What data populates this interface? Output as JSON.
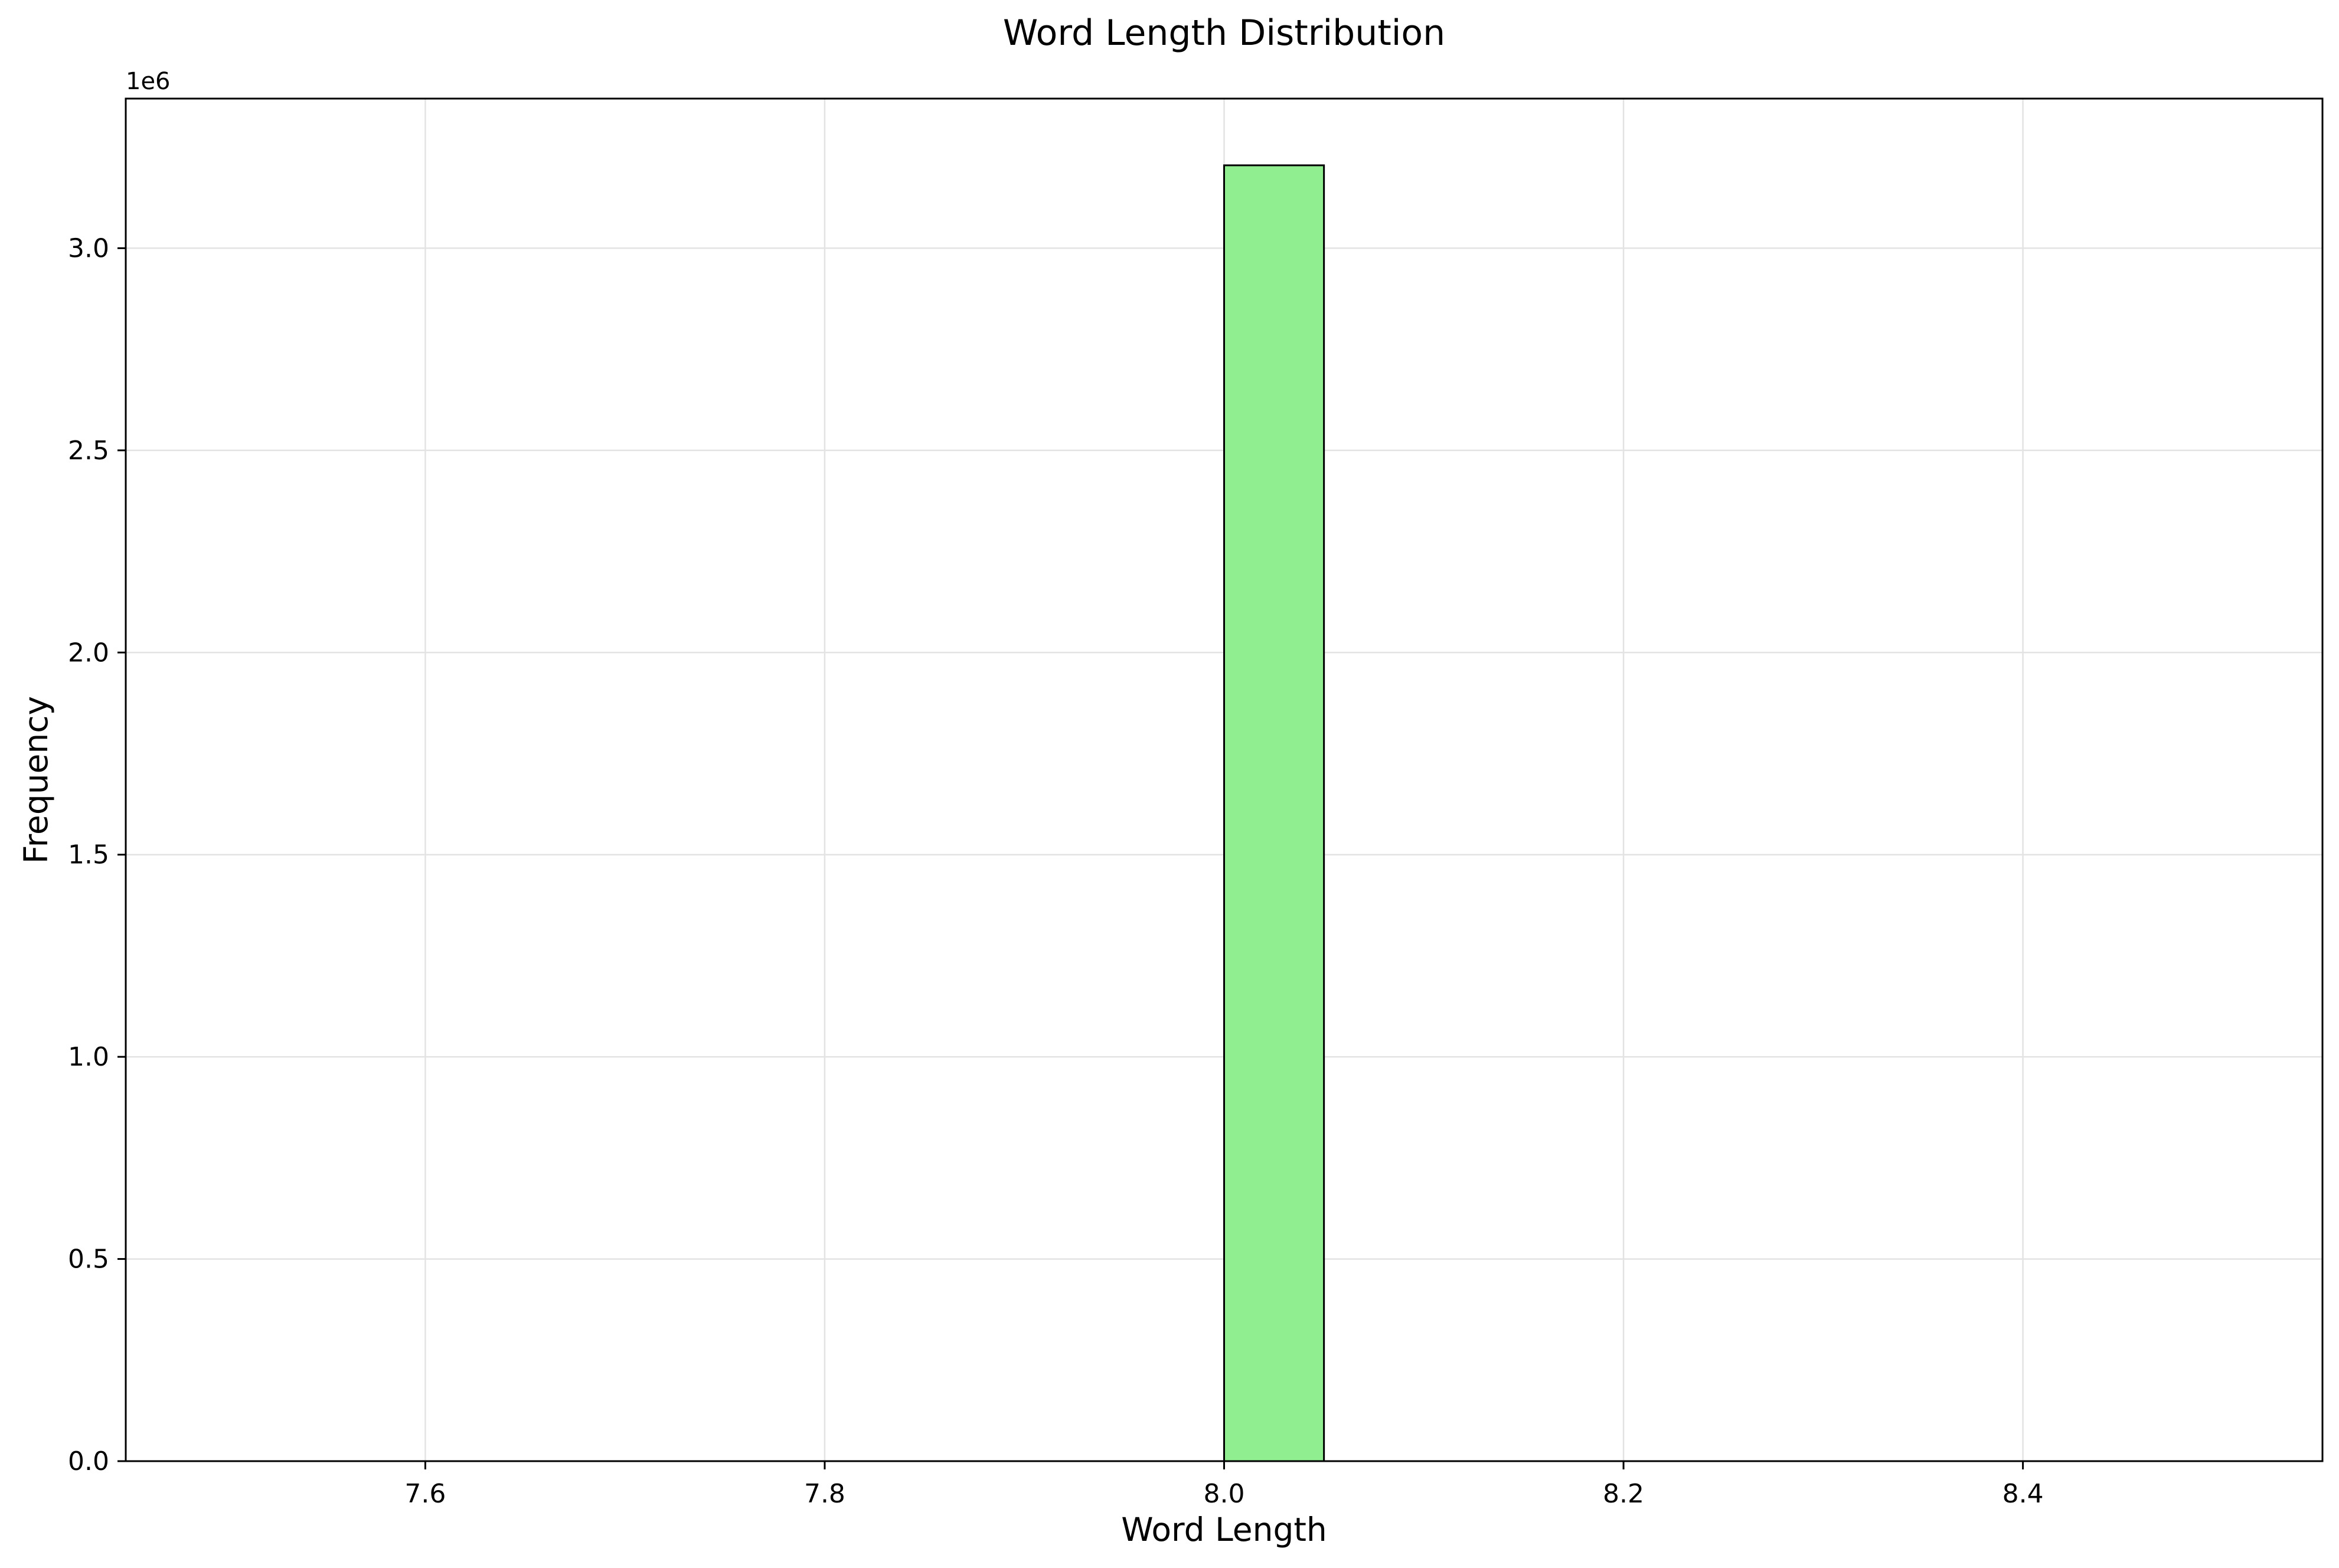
{
  "chart_data": {
    "type": "bar",
    "title": "Word Length Distribution",
    "xlabel": "Word Length",
    "ylabel": "Frequency",
    "y_offset_label": "1e6",
    "xlim": [
      7.45,
      8.55
    ],
    "ylim": [
      0,
      3.37
    ],
    "x_ticks": [
      7.6,
      7.8,
      8.0,
      8.2,
      8.4
    ],
    "x_tick_labels": [
      "7.6",
      "7.8",
      "8.0",
      "8.2",
      "8.4"
    ],
    "y_ticks": [
      0.0,
      0.5,
      1.0,
      1.5,
      2.0,
      2.5,
      3.0
    ],
    "y_tick_labels": [
      "0.0",
      "0.5",
      "1.0",
      "1.5",
      "2.0",
      "2.5",
      "3.0"
    ],
    "y_scale_multiplier": 1000000,
    "bins": {
      "start": 7.5,
      "end": 8.5,
      "count": 20
    },
    "bars": [
      {
        "x0": 8.0,
        "x1": 8.05,
        "value": 3.205
      }
    ],
    "bar_color": "#90ee90",
    "bar_edge_color": "#000000",
    "grid": true
  }
}
